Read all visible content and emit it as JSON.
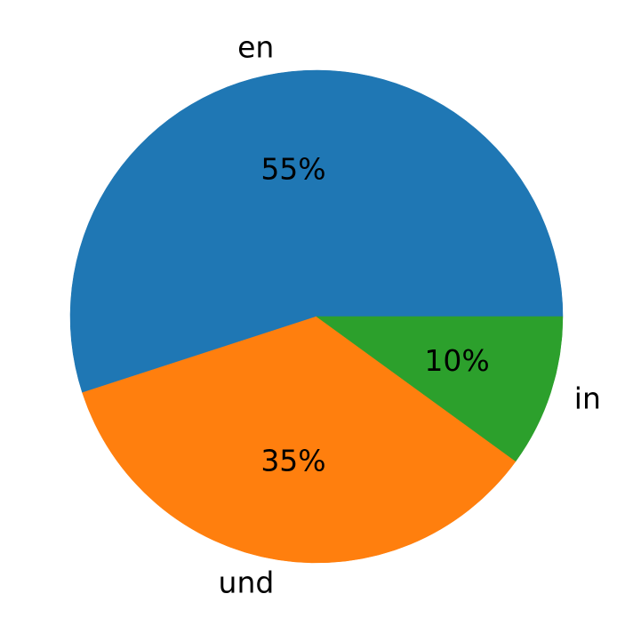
{
  "chart_data": {
    "type": "pie",
    "start_angle_deg": 0,
    "direction": "counterclockwise",
    "slices": [
      {
        "label": "en",
        "value": 55,
        "percent_label": "55%",
        "color": "#1f77b4"
      },
      {
        "label": "und",
        "value": 35,
        "percent_label": "35%",
        "color": "#ff7f0e"
      },
      {
        "label": "in",
        "value": 10,
        "percent_label": "10%",
        "color": "#2ca02c"
      }
    ]
  }
}
